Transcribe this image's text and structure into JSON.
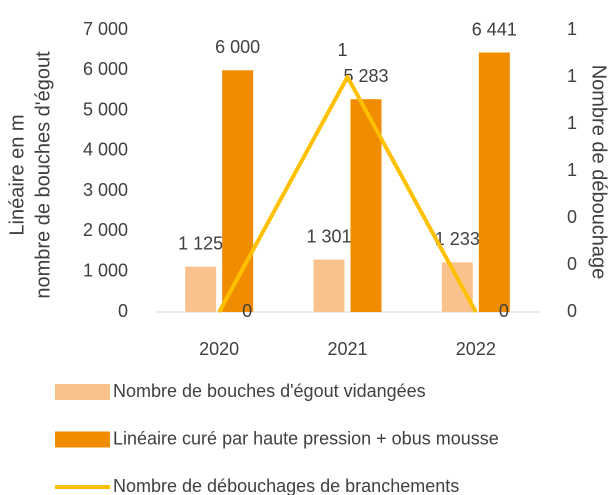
{
  "chart_data": {
    "type": "bar",
    "ylabel": [
      "Linéaire en m",
      "nombre de bouches d'égout"
    ],
    "y2label": "Nombre de débouchage",
    "categories": [
      "2020",
      "2021",
      "2022"
    ],
    "series": [
      {
        "name": "Nombre de bouches d'égout vidangées",
        "type": "bar",
        "color": "#f9c28d",
        "values": [
          1125,
          1301,
          1233
        ],
        "value_labels": [
          "1 125",
          "1 301",
          "1 233"
        ]
      },
      {
        "name": "Linéaire curé par haute pression + obus mousse",
        "type": "bar",
        "color": "#f08c00",
        "values": [
          6000,
          5283,
          6441
        ],
        "value_labels": [
          "6 000",
          "5 283",
          "6 441"
        ]
      },
      {
        "name": "Nombre de débouchages de branchements",
        "type": "line",
        "axis": "y2",
        "color": "#ffc000",
        "values": [
          0,
          1,
          0
        ]
      }
    ],
    "ylim": [
      0,
      7000
    ],
    "yticks": [
      0,
      {
        "value": 1000,
        "label": "1 000"
      },
      {
        "value": 2000,
        "label": "2 000"
      },
      {
        "value": 3000,
        "label": "3 000"
      },
      {
        "value": 4000,
        "label": "4 000"
      },
      {
        "value": 5000,
        "label": "5 000"
      },
      {
        "value": 6000,
        "label": "6 000"
      },
      {
        "value": 7000,
        "label": "7 000"
      }
    ],
    "y2lim": [
      0,
      1.2
    ],
    "y2ticks": [
      0,
      {
        "value": 0.2,
        "label": "0"
      },
      {
        "value": 0.4,
        "label": "0"
      },
      {
        "value": 0.6,
        "label": "1"
      },
      {
        "value": 0.8,
        "label": "1"
      },
      1,
      {
        "value": 1.2,
        "label": "1"
      }
    ],
    "legend": "bottom"
  }
}
